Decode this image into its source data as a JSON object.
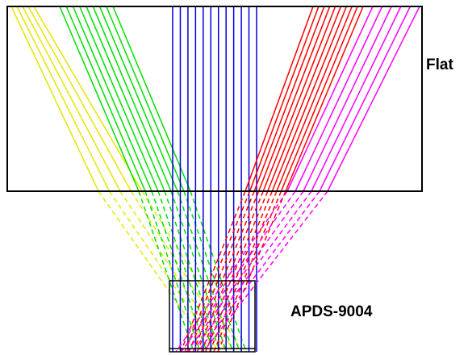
{
  "labels": {
    "flat": "Flat",
    "sensor": "APDS-9004"
  },
  "colors": {
    "yellow": "#e6e600",
    "green": "#00e000",
    "blue": "#0000dd",
    "red": "#ff0000",
    "magenta": "#ff00ff",
    "outline": "#000000"
  },
  "ray_groups": [
    {
      "name": "yellow-rays",
      "color": "yellow",
      "count": 5
    },
    {
      "name": "green-rays",
      "color": "green",
      "count": 9
    },
    {
      "name": "blue-rays",
      "color": "blue",
      "count": 12
    },
    {
      "name": "red-rays",
      "color": "red",
      "count": 10
    },
    {
      "name": "magenta-rays",
      "color": "magenta",
      "count": 6
    }
  ]
}
